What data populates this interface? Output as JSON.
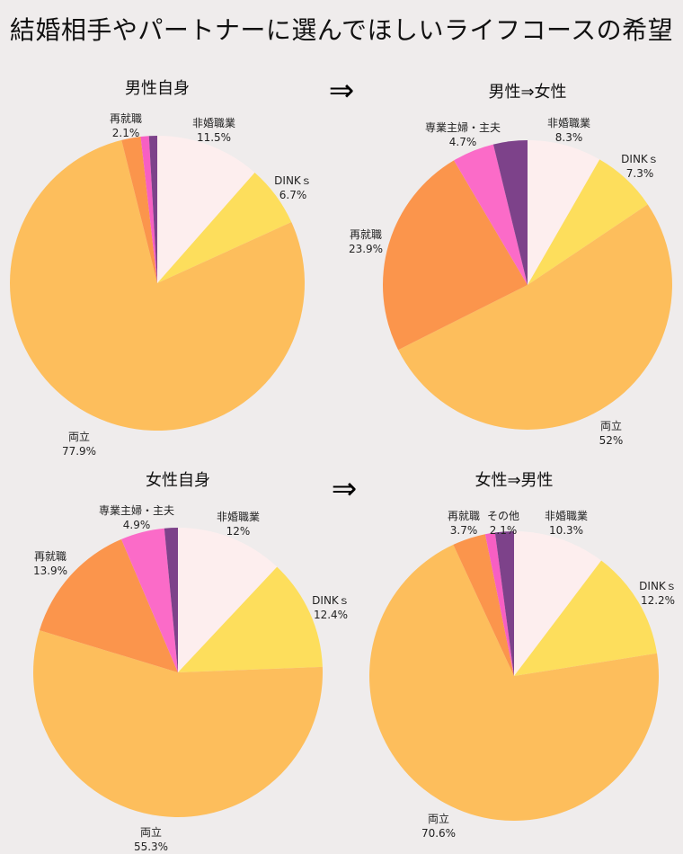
{
  "title": "結婚相手やパートナーに選んでほしいライフコースの希望",
  "arrow_symbol": "⇒",
  "colors": {
    "非婚職業": "#fdeeee",
    "DINKｓ": "#fdde5c",
    "両立": "#fdbe5c",
    "再就職": "#fb954c",
    "専業主婦・主夫": "#fb6bc8",
    "その他A": "#f75fc3",
    "その他": "#7d428a"
  },
  "chart_data": [
    {
      "type": "pie",
      "title": "男性自身",
      "slices": [
        {
          "label": "非婚職業",
          "value": 11.5,
          "display": "11.5%"
        },
        {
          "label": "DINKｓ",
          "value": 6.7,
          "display": "6.7%"
        },
        {
          "label": "両立",
          "value": 77.9,
          "display": "77.9%"
        },
        {
          "label": "再就職",
          "value": 2.1,
          "display": "2.1%"
        },
        {
          "label": "",
          "value": 0.9,
          "display": ""
        },
        {
          "label": "",
          "value": 0.9,
          "display": ""
        }
      ]
    },
    {
      "type": "pie",
      "title": "男性⇒女性",
      "slices": [
        {
          "label": "非婚職業",
          "value": 8.3,
          "display": "8.3%"
        },
        {
          "label": "DINKｓ",
          "value": 7.3,
          "display": "7.3%"
        },
        {
          "label": "両立",
          "value": 52,
          "display": "52%"
        },
        {
          "label": "再就職",
          "value": 23.9,
          "display": "23.9%"
        },
        {
          "label": "専業主婦・主夫",
          "value": 4.7,
          "display": "4.7%"
        },
        {
          "label": "",
          "value": 3.8,
          "display": ""
        }
      ]
    },
    {
      "type": "pie",
      "title": "女性自身",
      "slices": [
        {
          "label": "非婚職業",
          "value": 12,
          "display": "12%"
        },
        {
          "label": "DINKｓ",
          "value": 12.4,
          "display": "12.4%"
        },
        {
          "label": "両立",
          "value": 55.3,
          "display": "55.3%"
        },
        {
          "label": "再就職",
          "value": 13.9,
          "display": "13.9%"
        },
        {
          "label": "専業主婦・主夫",
          "value": 4.9,
          "display": "4.9%"
        },
        {
          "label": "",
          "value": 1.5,
          "display": ""
        }
      ]
    },
    {
      "type": "pie",
      "title": "女性⇒男性",
      "slices": [
        {
          "label": "非婚職業",
          "value": 10.3,
          "display": "10.3%"
        },
        {
          "label": "DINKｓ",
          "value": 12.2,
          "display": "12.2%"
        },
        {
          "label": "両立",
          "value": 70.6,
          "display": "70.6%"
        },
        {
          "label": "再就職",
          "value": 3.7,
          "display": "3.7%"
        },
        {
          "label": "",
          "value": 1.1,
          "display": ""
        },
        {
          "label": "その他",
          "value": 2.1,
          "display": "2.1%"
        }
      ]
    }
  ]
}
